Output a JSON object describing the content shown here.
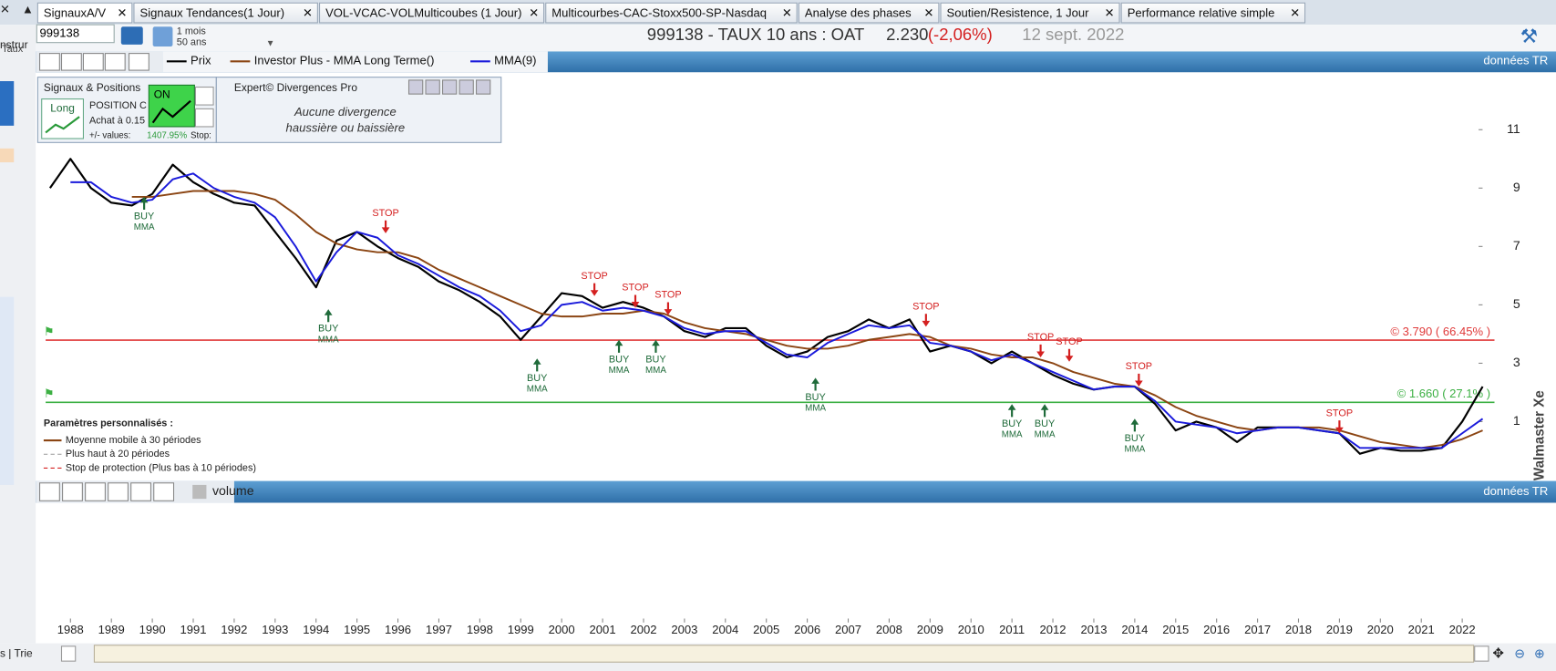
{
  "tabs": [
    "SignauxA/V",
    "Signaux Tendances(1 Jour)",
    "VOL-VCAC-VOLMulticoubes (1 Jour)",
    "Multicourbes-CAC-Stoxx500-SP-Nasdaq",
    "Analyse des phases",
    "Soutien/Resistence, 1 Jour",
    "Performance relative simple"
  ],
  "sidebar": {
    "top": "nstrur",
    "sub": "Taux"
  },
  "toolbar": {
    "symbol": "999138",
    "period": "1 mois",
    "range": "50 ans",
    "title": "999138 - TAUX 10 ans : OAT",
    "price": "2.230",
    "change": "(-2,06%)",
    "date": "12 sept. 2022"
  },
  "signals_panel": {
    "title": "Signaux & Positions",
    "badge": "Long",
    "position": "POSITION C",
    "entry": "Achat à 0.15",
    "pl_label": "+/- values:",
    "pl_value": "1407.95%",
    "stop": "Stop:",
    "toggle": "ON"
  },
  "expert_panel": {
    "title": "Expert© Divergences Pro",
    "line1": "Aucune divergence",
    "line2": "haussière ou baissière"
  },
  "parameters": {
    "title": "Paramètres personnalisés :",
    "items": [
      "Moyenne mobile à 30 périodes",
      "Plus haut à 20 périodes",
      "Stop de protection (Plus bas à 10 périodes)"
    ]
  },
  "watermark": "Walmaster Xe",
  "bottom_bar": {
    "label": "s | Trie"
  },
  "chart_data": {
    "type": "line",
    "source": "données TR",
    "x": [
      1987.5,
      1988,
      1988.5,
      1989,
      1989.5,
      1990,
      1990.5,
      1991,
      1991.5,
      1992,
      1992.5,
      1993,
      1993.5,
      1994,
      1994.5,
      1995,
      1995.5,
      1996,
      1996.5,
      1997,
      1997.5,
      1998,
      1998.5,
      1999,
      1999.5,
      2000,
      2000.5,
      2001,
      2001.5,
      2002,
      2002.5,
      2003,
      2003.5,
      2004,
      2004.5,
      2005,
      2005.5,
      2006,
      2006.5,
      2007,
      2007.5,
      2008,
      2008.5,
      2009,
      2009.5,
      2010,
      2010.5,
      2011,
      2011.5,
      2012,
      2012.5,
      2013,
      2013.5,
      2014,
      2014.5,
      2015,
      2015.5,
      2016,
      2016.5,
      2017,
      2017.5,
      2018,
      2018.5,
      2019,
      2019.5,
      2020,
      2020.5,
      2021,
      2021.5,
      2022,
      2022.5
    ],
    "series": [
      {
        "name": "Prix",
        "color": "#000000",
        "values": [
          9.0,
          10.0,
          9.0,
          8.5,
          8.4,
          8.8,
          9.8,
          9.2,
          8.8,
          8.5,
          8.4,
          7.5,
          6.6,
          5.6,
          7.2,
          7.5,
          7.0,
          6.6,
          6.3,
          5.8,
          5.5,
          5.1,
          4.6,
          3.8,
          4.6,
          5.4,
          5.3,
          4.9,
          5.1,
          4.9,
          4.6,
          4.1,
          3.9,
          4.2,
          4.2,
          3.6,
          3.2,
          3.4,
          3.9,
          4.1,
          4.5,
          4.2,
          4.5,
          3.4,
          3.6,
          3.4,
          3.0,
          3.4,
          3.0,
          2.6,
          2.3,
          2.1,
          2.2,
          2.2,
          1.6,
          0.7,
          1.0,
          0.8,
          0.3,
          0.8,
          0.8,
          0.8,
          0.7,
          0.6,
          -0.1,
          0.1,
          0.0,
          0.0,
          0.1,
          1.0,
          2.2
        ]
      },
      {
        "name": "Investor Plus - MMA Long Terme()",
        "color": "#8b4513",
        "values": [
          null,
          null,
          null,
          null,
          8.7,
          8.7,
          8.8,
          8.9,
          8.9,
          8.9,
          8.8,
          8.6,
          8.1,
          7.5,
          7.1,
          6.9,
          6.8,
          6.8,
          6.6,
          6.2,
          5.9,
          5.6,
          5.3,
          5.0,
          4.7,
          4.6,
          4.6,
          4.7,
          4.7,
          4.8,
          4.7,
          4.4,
          4.2,
          4.1,
          4.0,
          3.8,
          3.6,
          3.5,
          3.5,
          3.6,
          3.8,
          3.9,
          4.0,
          3.9,
          3.6,
          3.5,
          3.3,
          3.2,
          3.2,
          3.0,
          2.7,
          2.5,
          2.3,
          2.2,
          1.9,
          1.5,
          1.2,
          1.0,
          0.8,
          0.7,
          0.8,
          0.8,
          0.8,
          0.7,
          0.5,
          0.3,
          0.2,
          0.1,
          0.2,
          0.4,
          0.7
        ]
      },
      {
        "name": "MMA(9)",
        "color": "#1a1adb",
        "values": [
          null,
          9.2,
          9.2,
          8.7,
          8.5,
          8.6,
          9.3,
          9.5,
          9.0,
          8.7,
          8.5,
          8.0,
          7.0,
          5.8,
          6.8,
          7.5,
          7.3,
          6.7,
          6.4,
          6.0,
          5.6,
          5.3,
          4.8,
          4.1,
          4.3,
          5.0,
          5.1,
          4.8,
          4.9,
          4.8,
          4.6,
          4.2,
          4.0,
          4.1,
          4.1,
          3.7,
          3.3,
          3.2,
          3.7,
          4.0,
          4.3,
          4.2,
          4.3,
          3.7,
          3.6,
          3.4,
          3.1,
          3.3,
          3.0,
          2.7,
          2.4,
          2.1,
          2.2,
          2.2,
          1.7,
          1.0,
          0.9,
          0.8,
          0.6,
          0.7,
          0.8,
          0.8,
          0.7,
          0.6,
          0.1,
          0.1,
          0.1,
          0.1,
          0.1,
          0.6,
          1.1
        ]
      }
    ],
    "xlim": [
      1987.2,
      2022.4
    ],
    "xticks": [
      1988,
      1989,
      1990,
      1991,
      1992,
      1993,
      1994,
      1995,
      1996,
      1997,
      1998,
      1999,
      2000,
      2001,
      2002,
      2003,
      2004,
      2005,
      2006,
      2007,
      2008,
      2009,
      2010,
      2011,
      2012,
      2013,
      2014,
      2015,
      2016,
      2017,
      2018,
      2019,
      2020,
      2021,
      2022
    ],
    "ylim": [
      -1,
      12.9
    ],
    "yticks": [
      1,
      3,
      5,
      7,
      9,
      11
    ],
    "levels": [
      {
        "value": 3.79,
        "label": "© 3.790 ( 66.45% )",
        "color": "#e03a3a"
      },
      {
        "value": 1.66,
        "label": "© 1.660 ( 27.1% )",
        "color": "#3cb043"
      }
    ],
    "buy_signals": {
      "label": "BUY",
      "sub": "MMA",
      "color": "#1f6b3a",
      "points": [
        {
          "x": 1989.8,
          "y": 8.7
        },
        {
          "x": 1994.3,
          "y": 4.85
        },
        {
          "x": 1999.4,
          "y": 3.16
        },
        {
          "x": 2001.4,
          "y": 3.8
        },
        {
          "x": 2002.3,
          "y": 3.8
        },
        {
          "x": 2006.2,
          "y": 2.5
        },
        {
          "x": 2011.0,
          "y": 1.6
        },
        {
          "x": 2011.8,
          "y": 1.6
        },
        {
          "x": 2014.0,
          "y": 1.1
        }
      ]
    },
    "stop_signals": {
      "label": "STOP",
      "color": "#d42020",
      "points": [
        {
          "x": 1995.7,
          "y": 7.45
        },
        {
          "x": 2000.8,
          "y": 5.3
        },
        {
          "x": 2001.8,
          "y": 4.9
        },
        {
          "x": 2002.6,
          "y": 4.65
        },
        {
          "x": 2008.9,
          "y": 4.25
        },
        {
          "x": 2011.7,
          "y": 3.2
        },
        {
          "x": 2012.4,
          "y": 3.05
        },
        {
          "x": 2014.1,
          "y": 2.2
        },
        {
          "x": 2019.0,
          "y": 0.6
        }
      ]
    },
    "volume_pane": {
      "label": "volume",
      "source": "données TR"
    }
  }
}
